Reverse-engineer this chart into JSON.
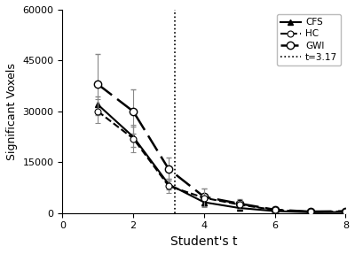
{
  "x": [
    1,
    2,
    3,
    4,
    5,
    6,
    7,
    8
  ],
  "cfs_y": [
    32000,
    22500,
    8500,
    3200,
    1500,
    600,
    250,
    300
  ],
  "cfs_err": [
    2500,
    3000,
    1500,
    1200,
    700,
    350,
    200,
    150
  ],
  "hc_y": [
    30000,
    22000,
    8000,
    4500,
    2500,
    900,
    400,
    500
  ],
  "hc_err": [
    3500,
    4000,
    2000,
    2800,
    1200,
    600,
    300,
    250
  ],
  "gwi_y": [
    38000,
    30000,
    13000,
    4800,
    2800,
    1000,
    450,
    550
  ],
  "gwi_err": [
    9000,
    6500,
    3500,
    2500,
    1300,
    700,
    400,
    300
  ],
  "vline_x": 3.17,
  "xlabel": "Student's t",
  "ylabel": "Significant Voxels",
  "ylim": [
    0,
    60000
  ],
  "xlim": [
    0,
    8
  ],
  "yticks": [
    0,
    15000,
    30000,
    45000,
    60000
  ],
  "xticks": [
    0,
    2,
    4,
    6,
    8
  ],
  "legend_labels": [
    "CFS",
    "HC",
    "GWI",
    "t=3.17"
  ],
  "color": "#000000",
  "bg_color": "#ffffff",
  "figsize": [
    4.0,
    2.87
  ],
  "dpi": 100
}
